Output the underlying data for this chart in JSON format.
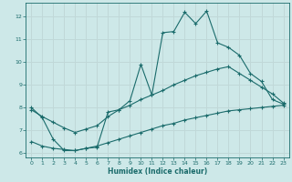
{
  "xlabel": "Humidex (Indice chaleur)",
  "bg_color": "#cde8e8",
  "grid_color": "#c0d8d8",
  "line_color": "#1a6b6b",
  "xlim": [
    -0.5,
    23.5
  ],
  "ylim": [
    5.8,
    12.6
  ],
  "yticks": [
    6,
    7,
    8,
    9,
    10,
    11,
    12
  ],
  "xticks": [
    0,
    1,
    2,
    3,
    4,
    5,
    6,
    7,
    8,
    9,
    10,
    11,
    12,
    13,
    14,
    15,
    16,
    17,
    18,
    19,
    20,
    21,
    22,
    23
  ],
  "line1_x": [
    0,
    1,
    2,
    3,
    4,
    5,
    6,
    7,
    8,
    9,
    10,
    11,
    12,
    13,
    14,
    15,
    16,
    17,
    18,
    19,
    20,
    21,
    22,
    23
  ],
  "line1_y": [
    8.0,
    7.55,
    6.6,
    6.1,
    6.1,
    6.2,
    6.25,
    7.8,
    7.9,
    8.3,
    9.9,
    8.55,
    11.3,
    11.35,
    12.2,
    11.7,
    12.25,
    10.85,
    10.65,
    10.3,
    9.5,
    9.15,
    8.35,
    8.15
  ],
  "line2_x": [
    0,
    1,
    2,
    3,
    4,
    5,
    6,
    7,
    8,
    9,
    10,
    11,
    12,
    13,
    14,
    15,
    16,
    17,
    18,
    19,
    20,
    21,
    22,
    23
  ],
  "line2_y": [
    7.9,
    7.6,
    7.35,
    7.1,
    6.9,
    7.05,
    7.2,
    7.6,
    7.9,
    8.1,
    8.35,
    8.55,
    8.75,
    9.0,
    9.2,
    9.4,
    9.55,
    9.7,
    9.8,
    9.5,
    9.2,
    8.9,
    8.6,
    8.2
  ],
  "line3_x": [
    0,
    1,
    2,
    3,
    4,
    5,
    6,
    7,
    8,
    9,
    10,
    11,
    12,
    13,
    14,
    15,
    16,
    17,
    18,
    19,
    20,
    21,
    22,
    23
  ],
  "line3_y": [
    6.5,
    6.3,
    6.2,
    6.15,
    6.1,
    6.2,
    6.3,
    6.45,
    6.6,
    6.75,
    6.9,
    7.05,
    7.2,
    7.3,
    7.45,
    7.55,
    7.65,
    7.75,
    7.85,
    7.9,
    7.95,
    8.0,
    8.05,
    8.1
  ]
}
